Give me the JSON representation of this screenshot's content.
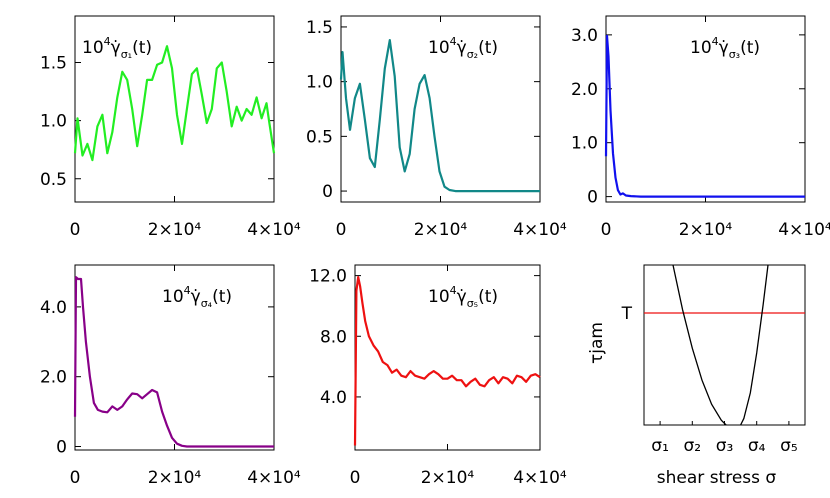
{
  "chart_data": [
    {
      "type": "line",
      "title_base": "10",
      "title_exp": "4",
      "title_var": "γ̇",
      "title_sub": "σ₁",
      "title_arg": "(t)",
      "color": "#22ee22",
      "xlim": [
        0,
        40000
      ],
      "ylim": [
        0.3,
        1.9
      ],
      "xticks": [
        {
          "v": 0,
          "label": "0"
        },
        {
          "v": 20000,
          "label": "2×10⁴"
        },
        {
          "v": 40000,
          "label": "4×10⁴"
        }
      ],
      "yticks": [
        {
          "v": 0.5,
          "label": "0.5"
        },
        {
          "v": 1.0,
          "label": "1.0"
        },
        {
          "v": 1.5,
          "label": "1.5"
        }
      ],
      "x": [
        0,
        500,
        1500,
        2500,
        3500,
        4500,
        5500,
        6500,
        7500,
        8500,
        9500,
        10500,
        11500,
        12500,
        13500,
        14500,
        15500,
        16500,
        17500,
        18500,
        19500,
        20500,
        21500,
        22500,
        23500,
        24500,
        25500,
        26500,
        27500,
        28500,
        29500,
        30500,
        31500,
        32500,
        33500,
        34500,
        35500,
        36500,
        37500,
        38500,
        39000,
        40000
      ],
      "y": [
        0.72,
        1.02,
        0.7,
        0.8,
        0.66,
        0.95,
        1.05,
        0.72,
        0.9,
        1.2,
        1.42,
        1.35,
        1.1,
        0.78,
        1.05,
        1.35,
        1.35,
        1.48,
        1.5,
        1.64,
        1.45,
        1.05,
        0.8,
        1.1,
        1.4,
        1.45,
        1.22,
        0.98,
        1.1,
        1.45,
        1.5,
        1.25,
        0.95,
        1.12,
        1.0,
        1.1,
        1.05,
        1.2,
        1.02,
        1.15,
        1.0,
        0.72
      ]
    },
    {
      "type": "line",
      "title_base": "10",
      "title_exp": "4",
      "title_var": "γ̇",
      "title_sub": "σ₂",
      "title_arg": "(t)",
      "color": "#118888",
      "xlim": [
        0,
        40000
      ],
      "ylim": [
        -0.1,
        1.6
      ],
      "xticks": [
        {
          "v": 0,
          "label": "0"
        },
        {
          "v": 20000,
          "label": "2×10⁴"
        },
        {
          "v": 40000,
          "label": "4×10⁴"
        }
      ],
      "yticks": [
        {
          "v": 0,
          "label": "0"
        },
        {
          "v": 0.5,
          "label": "0.5"
        },
        {
          "v": 1.0,
          "label": "1.0"
        },
        {
          "v": 1.5,
          "label": "1.5"
        }
      ],
      "x": [
        0,
        300,
        1000,
        1800,
        2800,
        3800,
        4800,
        5800,
        6800,
        7800,
        8800,
        9800,
        10800,
        11800,
        12800,
        13800,
        14800,
        15800,
        16800,
        17800,
        18800,
        19800,
        20800,
        21800,
        23000,
        25000,
        30000,
        35000,
        40000
      ],
      "y": [
        1.02,
        1.27,
        0.85,
        0.56,
        0.85,
        0.98,
        0.65,
        0.3,
        0.22,
        0.65,
        1.12,
        1.38,
        1.05,
        0.4,
        0.18,
        0.34,
        0.75,
        0.98,
        1.06,
        0.85,
        0.5,
        0.18,
        0.04,
        0.01,
        0.0,
        0.0,
        0.0,
        0.0,
        0.0
      ]
    },
    {
      "type": "line",
      "title_base": "10",
      "title_exp": "4",
      "title_var": "γ̇",
      "title_sub": "σ₃",
      "title_arg": "(t)",
      "color": "#1111ee",
      "xlim": [
        0,
        40000
      ],
      "ylim": [
        -0.1,
        3.35
      ],
      "xticks": [
        {
          "v": 0,
          "label": "0"
        },
        {
          "v": 20000,
          "label": "2×10⁴"
        },
        {
          "v": 40000,
          "label": "4×10⁴"
        }
      ],
      "yticks": [
        {
          "v": 0,
          "label": "0"
        },
        {
          "v": 1.0,
          "label": "1.0"
        },
        {
          "v": 2.0,
          "label": "2.0"
        },
        {
          "v": 3.0,
          "label": "3.0"
        }
      ],
      "x": [
        0,
        200,
        500,
        900,
        1400,
        1900,
        2400,
        2900,
        3400,
        4000,
        5000,
        7000,
        10000,
        20000,
        30000,
        40000
      ],
      "y": [
        0.75,
        2.98,
        2.6,
        1.6,
        0.8,
        0.35,
        0.12,
        0.04,
        0.06,
        0.02,
        0.01,
        0.0,
        0.0,
        0.0,
        0.0,
        0.0
      ]
    },
    {
      "type": "line",
      "title_base": "10",
      "title_exp": "4",
      "title_var": "γ̇",
      "title_sub": "σ₄",
      "title_arg": "(t)",
      "color": "#880088",
      "xlim": [
        0,
        40000
      ],
      "ylim": [
        -0.1,
        5.2
      ],
      "xticks": [
        {
          "v": 0,
          "label": "0"
        },
        {
          "v": 20000,
          "label": "2×10⁴"
        },
        {
          "v": 40000,
          "label": "4×10⁴"
        }
      ],
      "yticks": [
        {
          "v": 0,
          "label": "0"
        },
        {
          "v": 2.0,
          "label": "2.0"
        },
        {
          "v": 4.0,
          "label": "4.0"
        }
      ],
      "x": [
        0,
        200,
        600,
        1200,
        1600,
        2200,
        3000,
        3800,
        4600,
        5500,
        6500,
        7500,
        8500,
        9500,
        10500,
        11500,
        12500,
        13500,
        14500,
        15500,
        16500,
        17500,
        18500,
        19500,
        20500,
        21500,
        22500,
        24000,
        30000,
        40000
      ],
      "y": [
        0.85,
        4.85,
        4.8,
        4.8,
        4.0,
        3.0,
        2.0,
        1.25,
        1.05,
        1.0,
        0.98,
        1.15,
        1.05,
        1.15,
        1.35,
        1.52,
        1.5,
        1.38,
        1.5,
        1.62,
        1.55,
        1.0,
        0.6,
        0.25,
        0.08,
        0.02,
        0.0,
        0.0,
        0.0,
        0.0
      ]
    },
    {
      "type": "line",
      "title_base": "10",
      "title_exp": "4",
      "title_var": "γ̇",
      "title_sub": "σ₅",
      "title_arg": "(t)",
      "color": "#ee1111",
      "xlim": [
        0,
        40000
      ],
      "ylim": [
        0.5,
        12.7
      ],
      "xticks": [
        {
          "v": 0,
          "label": "0"
        },
        {
          "v": 20000,
          "label": "2×10⁴"
        },
        {
          "v": 40000,
          "label": "4×10⁴"
        }
      ],
      "yticks": [
        {
          "v": 4.0,
          "label": "4.0"
        },
        {
          "v": 8.0,
          "label": "8.0"
        },
        {
          "v": 12.0,
          "label": "12.0"
        }
      ],
      "x": [
        0,
        300,
        700,
        1100,
        1600,
        2200,
        3000,
        4000,
        5000,
        6000,
        7000,
        8000,
        9000,
        10000,
        11000,
        12000,
        13000,
        14000,
        15000,
        16000,
        17000,
        18000,
        19000,
        20000,
        21000,
        22000,
        23000,
        24000,
        25000,
        26000,
        27000,
        28000,
        29000,
        30000,
        31000,
        32000,
        33000,
        34000,
        35000,
        36000,
        37000,
        38000,
        39000,
        40000
      ],
      "y": [
        0.8,
        11.0,
        11.9,
        11.3,
        10.2,
        9.0,
        8.0,
        7.4,
        7.0,
        6.3,
        6.1,
        5.6,
        5.8,
        5.4,
        5.3,
        5.7,
        5.4,
        5.3,
        5.2,
        5.5,
        5.7,
        5.5,
        5.2,
        5.2,
        5.4,
        5.1,
        5.1,
        4.7,
        5.0,
        5.2,
        4.8,
        4.7,
        5.1,
        5.3,
        4.9,
        5.3,
        5.2,
        4.9,
        5.4,
        5.3,
        5.0,
        5.4,
        5.5,
        5.3
      ]
    },
    {
      "type": "line",
      "schematic": true,
      "xlabel": "shear stress σ",
      "ylabel": "τjam",
      "hline_label": "T",
      "xtick_labels": [
        "σ₁",
        "σ₂",
        "σ₃",
        "σ₄",
        "σ₅"
      ],
      "xticks_v": [
        0.5,
        1.5,
        2.5,
        3.5,
        4.5
      ],
      "xlim": [
        0,
        5
      ],
      "ylim": [
        0,
        1
      ],
      "hline_y": 0.7,
      "curve_left": {
        "x": [
          0.9,
          1.2,
          1.5,
          1.8,
          2.1,
          2.4,
          2.55
        ],
        "y": [
          1.0,
          0.72,
          0.48,
          0.28,
          0.13,
          0.03,
          0.0
        ]
      },
      "curve_right": {
        "x": [
          3.0,
          3.1,
          3.3,
          3.5,
          3.7,
          3.85
        ],
        "y": [
          0.0,
          0.04,
          0.2,
          0.45,
          0.75,
          1.0
        ]
      },
      "curve_color": "#000000",
      "hline_color": "#ee1111"
    }
  ]
}
